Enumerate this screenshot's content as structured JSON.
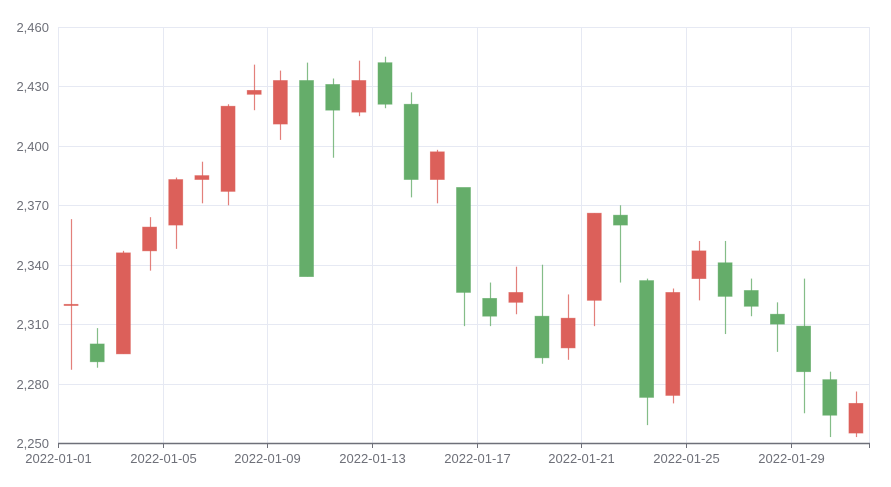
{
  "chart_data": {
    "type": "candlestick",
    "title": "",
    "xlabel": "",
    "ylabel": "",
    "ylim": [
      2250,
      2460
    ],
    "y_ticks": [
      2250,
      2280,
      2310,
      2340,
      2370,
      2400,
      2430,
      2460
    ],
    "y_tick_labels": [
      "2,250",
      "2,280",
      "2,310",
      "2,340",
      "2,370",
      "2,400",
      "2,430",
      "2,460"
    ],
    "x_tick_labels": [
      "2022-01-01",
      "2022-01-05",
      "2022-01-09",
      "2022-01-13",
      "2022-01-17",
      "2022-01-21",
      "2022-01-25",
      "2022-01-29"
    ],
    "grid": true,
    "legend": null,
    "colors": {
      "up": "#dc605a",
      "down": "#65ad6a",
      "grid": "#e6e9f3",
      "axis": "#6e7079",
      "label": "#6e7079"
    },
    "categories": [
      "2022-01-01",
      "2022-01-02",
      "2022-01-03",
      "2022-01-04",
      "2022-01-05",
      "2022-01-06",
      "2022-01-07",
      "2022-01-08",
      "2022-01-09",
      "2022-01-10",
      "2022-01-11",
      "2022-01-12",
      "2022-01-13",
      "2022-01-14",
      "2022-01-15",
      "2022-01-16",
      "2022-01-17",
      "2022-01-18",
      "2022-01-19",
      "2022-01-20",
      "2022-01-21",
      "2022-01-22",
      "2022-01-23",
      "2022-01-24",
      "2022-01-25",
      "2022-01-26",
      "2022-01-27",
      "2022-01-28",
      "2022-01-29",
      "2022-01-30",
      "2022-01-31"
    ],
    "ohlc": [
      {
        "open": 2320,
        "high": 2363,
        "low": 2287,
        "close": 2320
      },
      {
        "open": 2300,
        "high": 2308,
        "low": 2288,
        "close": 2291
      },
      {
        "open": 2295,
        "high": 2347,
        "low": 2295,
        "close": 2346
      },
      {
        "open": 2347,
        "high": 2364,
        "low": 2337,
        "close": 2359
      },
      {
        "open": 2360,
        "high": 2384,
        "low": 2348,
        "close": 2383
      },
      {
        "open": 2383,
        "high": 2392,
        "low": 2371,
        "close": 2385
      },
      {
        "open": 2377,
        "high": 2421,
        "low": 2370,
        "close": 2420
      },
      {
        "open": 2426,
        "high": 2441,
        "low": 2418,
        "close": 2428
      },
      {
        "open": 2411,
        "high": 2438,
        "low": 2403,
        "close": 2433
      },
      {
        "open": 2433,
        "high": 2442,
        "low": 2334,
        "close": 2334
      },
      {
        "open": 2431,
        "high": 2434,
        "low": 2394,
        "close": 2418
      },
      {
        "open": 2417,
        "high": 2443,
        "low": 2415,
        "close": 2433
      },
      {
        "open": 2442,
        "high": 2445,
        "low": 2419,
        "close": 2421
      },
      {
        "open": 2421,
        "high": 2427,
        "low": 2374,
        "close": 2383
      },
      {
        "open": 2383,
        "high": 2398,
        "low": 2371,
        "close": 2397
      },
      {
        "open": 2379,
        "high": 2379,
        "low": 2309,
        "close": 2326
      },
      {
        "open": 2323,
        "high": 2331,
        "low": 2309,
        "close": 2314
      },
      {
        "open": 2321,
        "high": 2339,
        "low": 2315,
        "close": 2326
      },
      {
        "open": 2314,
        "high": 2340,
        "low": 2290,
        "close": 2293
      },
      {
        "open": 2298,
        "high": 2325,
        "low": 2292,
        "close": 2313
      },
      {
        "open": 2322,
        "high": 2366,
        "low": 2309,
        "close": 2366
      },
      {
        "open": 2365,
        "high": 2370,
        "low": 2331,
        "close": 2360
      },
      {
        "open": 2332,
        "high": 2333,
        "low": 2259,
        "close": 2273
      },
      {
        "open": 2274,
        "high": 2328,
        "low": 2270,
        "close": 2326
      },
      {
        "open": 2333,
        "high": 2352,
        "low": 2322,
        "close": 2347
      },
      {
        "open": 2341,
        "high": 2352,
        "low": 2305,
        "close": 2324
      },
      {
        "open": 2327,
        "high": 2333,
        "low": 2314,
        "close": 2319
      },
      {
        "open": 2315,
        "high": 2321,
        "low": 2296,
        "close": 2310
      },
      {
        "open": 2309,
        "high": 2333,
        "low": 2265,
        "close": 2286
      },
      {
        "open": 2282,
        "high": 2286,
        "low": 2253,
        "close": 2264
      },
      {
        "open": 2255,
        "high": 2276,
        "low": 2253,
        "close": 2270
      }
    ]
  }
}
